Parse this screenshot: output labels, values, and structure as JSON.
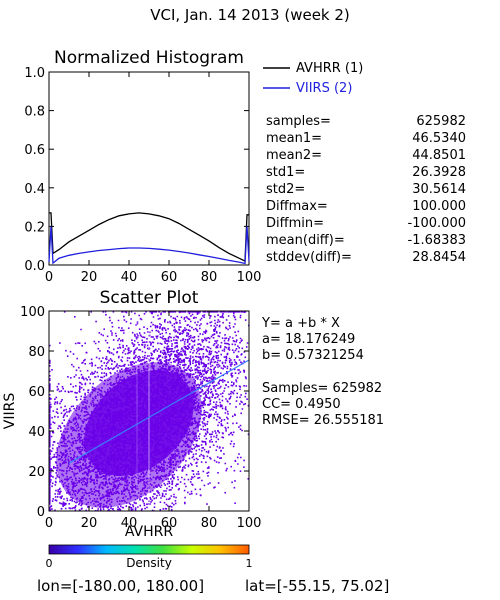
{
  "header": {
    "title": "VCI,   Jan. 14 2013 (week 2)"
  },
  "colors": {
    "avhrr": "#000000",
    "viirs": "#1f1fdc",
    "scatter_points": "#6a00e8",
    "fit_line": "#3a7cff"
  },
  "stats": [
    {
      "label": "samples=",
      "value": "625982"
    },
    {
      "label": "mean1=",
      "value": "46.5340"
    },
    {
      "label": "mean2=",
      "value": "44.8501"
    },
    {
      "label": "std1=",
      "value": "26.3928"
    },
    {
      "label": "std2=",
      "value": "30.5614"
    },
    {
      "label": "Diffmax=",
      "value": "100.000"
    },
    {
      "label": "Diffmin=",
      "value": "-100.000"
    },
    {
      "label": "mean(diff)=",
      "value": "-1.68383"
    },
    {
      "label": "stddev(diff)=",
      "value": "28.8454"
    }
  ],
  "regression": {
    "equation": "Y= a +b * X",
    "a": "a= 18.176249",
    "b": "b= 0.57321254",
    "samples": "Samples= 625982",
    "cc": "CC=  0.4950",
    "rmse": "RMSE= 26.555181"
  },
  "colorbar": {
    "label": "Density",
    "min": "0",
    "max": "1",
    "colors": [
      "#3a00a8",
      "#2f2fff",
      "#00b8ff",
      "#00e0b0",
      "#40e040",
      "#c8ff00",
      "#ffc000",
      "#ff5a00"
    ]
  },
  "footer": {
    "lon": "lon=[-180.00, 180.00]",
    "lat": "lat=[-55.15, 75.02]"
  },
  "chart_data": [
    {
      "type": "line",
      "title": "Normalized Histogram",
      "xlabel": "",
      "ylabel": "",
      "xlim": [
        0,
        100
      ],
      "ylim": [
        0,
        1.0
      ],
      "xticks": [
        0,
        20,
        40,
        60,
        80,
        100
      ],
      "yticks": [
        0.0,
        0.2,
        0.4,
        0.6,
        0.8,
        1.0
      ],
      "legend_position": "right",
      "series": [
        {
          "name": "AVHRR (1)",
          "color": "#000000",
          "points": [
            [
              0,
              0.27
            ],
            [
              1,
              0.27
            ],
            [
              2,
              0.06
            ],
            [
              5,
              0.08
            ],
            [
              10,
              0.12
            ],
            [
              15,
              0.15
            ],
            [
              20,
              0.18
            ],
            [
              25,
              0.21
            ],
            [
              30,
              0.235
            ],
            [
              35,
              0.255
            ],
            [
              40,
              0.265
            ],
            [
              45,
              0.27
            ],
            [
              50,
              0.265
            ],
            [
              55,
              0.255
            ],
            [
              60,
              0.24
            ],
            [
              65,
              0.215
            ],
            [
              70,
              0.185
            ],
            [
              75,
              0.155
            ],
            [
              80,
              0.125
            ],
            [
              85,
              0.09
            ],
            [
              90,
              0.06
            ],
            [
              95,
              0.035
            ],
            [
              98,
              0.02
            ],
            [
              99,
              0.26
            ],
            [
              100,
              0.26
            ]
          ]
        },
        {
          "name": "VIIRS (2)",
          "color": "#1f1fdc",
          "points": [
            [
              0,
              0.015
            ],
            [
              1,
              0.2
            ],
            [
              2,
              0.01
            ],
            [
              5,
              0.035
            ],
            [
              10,
              0.05
            ],
            [
              15,
              0.06
            ],
            [
              20,
              0.068
            ],
            [
              25,
              0.075
            ],
            [
              30,
              0.08
            ],
            [
              35,
              0.085
            ],
            [
              40,
              0.088
            ],
            [
              45,
              0.088
            ],
            [
              50,
              0.086
            ],
            [
              55,
              0.082
            ],
            [
              60,
              0.077
            ],
            [
              65,
              0.07
            ],
            [
              70,
              0.062
            ],
            [
              75,
              0.053
            ],
            [
              80,
              0.044
            ],
            [
              85,
              0.034
            ],
            [
              90,
              0.024
            ],
            [
              95,
              0.015
            ],
            [
              98,
              0.008
            ],
            [
              99,
              0.2
            ],
            [
              100,
              0.02
            ]
          ]
        }
      ]
    },
    {
      "type": "scatter",
      "title": "Scatter Plot",
      "xlabel": "AVHRR",
      "ylabel": "VIIRS",
      "xlim": [
        0,
        100
      ],
      "ylim": [
        0,
        100
      ],
      "xticks": [
        0,
        20,
        40,
        60,
        80,
        100
      ],
      "yticks": [
        0,
        20,
        40,
        60,
        80,
        100
      ],
      "samples": 625982,
      "fit": {
        "intercept": 18.176249,
        "slope": 0.57321254,
        "x_range": [
          10,
          100
        ]
      }
    }
  ]
}
